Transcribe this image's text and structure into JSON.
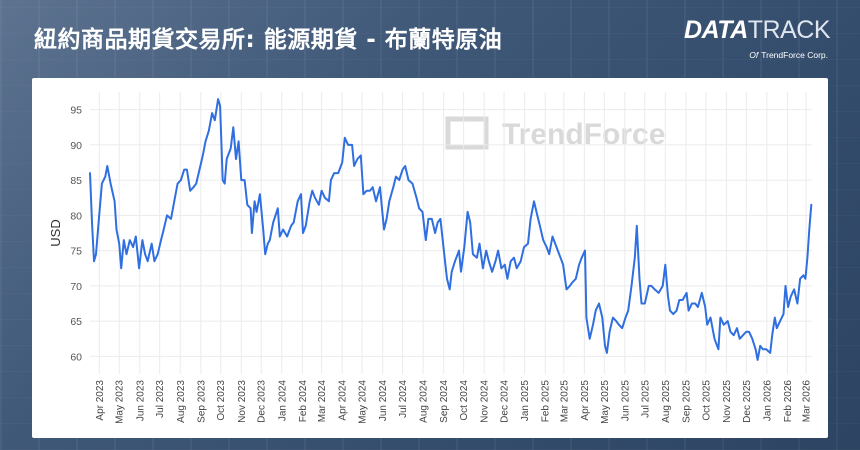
{
  "header": {
    "title": "紐約商品期貨交易所: 能源期貨 - 布蘭特原油"
  },
  "brand": {
    "name_bold": "DATA",
    "name_thin": "TRACK",
    "of_label": "Of",
    "company": "TrendForce Corp."
  },
  "watermark": "TrendForce",
  "colors": {
    "line": "#2f6fe0",
    "grid": "#ebebeb",
    "panel": "#ffffff"
  },
  "chart_data": {
    "type": "line",
    "ylabel": "USD",
    "ylim": [
      57.5,
      97.5
    ],
    "yticks": [
      60,
      65,
      70,
      75,
      80,
      85,
      90,
      95
    ],
    "grid": true,
    "xlim": [
      "2023-03-18",
      "2026-03-10"
    ],
    "x_ticks": [
      {
        "date": "2023-04-01",
        "label": "Apr 2023"
      },
      {
        "date": "2023-05-01",
        "label": "May 2023"
      },
      {
        "date": "2023-06-01",
        "label": "Jun 2023"
      },
      {
        "date": "2023-07-01",
        "label": "Jul 2023"
      },
      {
        "date": "2023-08-01",
        "label": "Aug 2023"
      },
      {
        "date": "2023-09-01",
        "label": "Sep 2023"
      },
      {
        "date": "2023-10-01",
        "label": "Oct 2023"
      },
      {
        "date": "2023-11-01",
        "label": "Nov 2023"
      },
      {
        "date": "2023-12-01",
        "label": "Dec 2023"
      },
      {
        "date": "2024-01-01",
        "label": "Jan 2024"
      },
      {
        "date": "2024-02-01",
        "label": "Feb 2024"
      },
      {
        "date": "2024-03-01",
        "label": "Mar 2024"
      },
      {
        "date": "2024-04-01",
        "label": "Apr 2024"
      },
      {
        "date": "2024-05-01",
        "label": "May 2024"
      },
      {
        "date": "2024-06-01",
        "label": "Jun 2024"
      },
      {
        "date": "2024-07-01",
        "label": "Jul 2024"
      },
      {
        "date": "2024-08-01",
        "label": "Aug 2024"
      },
      {
        "date": "2024-09-01",
        "label": "Sep 2024"
      },
      {
        "date": "2024-10-01",
        "label": "Oct 2024"
      },
      {
        "date": "2024-11-01",
        "label": "Nov 2024"
      },
      {
        "date": "2024-12-01",
        "label": "Dec 2024"
      },
      {
        "date": "2025-01-01",
        "label": "Jan 2025"
      },
      {
        "date": "2025-02-01",
        "label": "Feb 2025"
      },
      {
        "date": "2025-03-01",
        "label": "Mar 2025"
      },
      {
        "date": "2025-04-01",
        "label": "Apr 2025"
      },
      {
        "date": "2025-05-01",
        "label": "May 2025"
      },
      {
        "date": "2025-06-01",
        "label": "Jun 2025"
      },
      {
        "date": "2025-07-01",
        "label": "Jul 2025"
      },
      {
        "date": "2025-08-01",
        "label": "Aug 2025"
      },
      {
        "date": "2025-09-01",
        "label": "Sep 2025"
      },
      {
        "date": "2025-10-01",
        "label": "Oct 2025"
      },
      {
        "date": "2025-11-01",
        "label": "Nov 2025"
      },
      {
        "date": "2025-12-01",
        "label": "Dec 2025"
      },
      {
        "date": "2026-01-01",
        "label": "Jan 2026"
      },
      {
        "date": "2026-02-01",
        "label": "Feb 2026"
      },
      {
        "date": "2026-03-01",
        "label": "Mar 2026"
      }
    ],
    "series": [
      {
        "points": [
          [
            "2023-03-18",
            86.0
          ],
          [
            "2023-03-21",
            79.0
          ],
          [
            "2023-03-24",
            73.5
          ],
          [
            "2023-03-27",
            74.5
          ],
          [
            "2023-03-31",
            79.0
          ],
          [
            "2023-04-05",
            84.5
          ],
          [
            "2023-04-10",
            85.5
          ],
          [
            "2023-04-13",
            87.0
          ],
          [
            "2023-04-18",
            84.5
          ],
          [
            "2023-04-24",
            82.0
          ],
          [
            "2023-04-27",
            78.0
          ],
          [
            "2023-05-01",
            76.0
          ],
          [
            "2023-05-04",
            72.5
          ],
          [
            "2023-05-08",
            76.5
          ],
          [
            "2023-05-12",
            74.5
          ],
          [
            "2023-05-17",
            76.5
          ],
          [
            "2023-05-22",
            75.5
          ],
          [
            "2023-05-26",
            77.0
          ],
          [
            "2023-05-31",
            72.5
          ],
          [
            "2023-06-05",
            76.5
          ],
          [
            "2023-06-09",
            74.5
          ],
          [
            "2023-06-13",
            73.5
          ],
          [
            "2023-06-19",
            76.0
          ],
          [
            "2023-06-23",
            73.5
          ],
          [
            "2023-06-28",
            74.5
          ],
          [
            "2023-07-03",
            76.5
          ],
          [
            "2023-07-07",
            78.0
          ],
          [
            "2023-07-12",
            80.0
          ],
          [
            "2023-07-18",
            79.5
          ],
          [
            "2023-07-24",
            82.5
          ],
          [
            "2023-07-28",
            84.5
          ],
          [
            "2023-08-02",
            85.0
          ],
          [
            "2023-08-07",
            86.5
          ],
          [
            "2023-08-11",
            86.5
          ],
          [
            "2023-08-16",
            83.5
          ],
          [
            "2023-08-21",
            84.0
          ],
          [
            "2023-08-25",
            84.5
          ],
          [
            "2023-08-30",
            86.5
          ],
          [
            "2023-09-04",
            88.5
          ],
          [
            "2023-09-08",
            90.5
          ],
          [
            "2023-09-13",
            92.0
          ],
          [
            "2023-09-18",
            94.5
          ],
          [
            "2023-09-22",
            93.5
          ],
          [
            "2023-09-27",
            96.5
          ],
          [
            "2023-09-30",
            95.5
          ],
          [
            "2023-10-04",
            85.0
          ],
          [
            "2023-10-07",
            84.5
          ],
          [
            "2023-10-10",
            88.0
          ],
          [
            "2023-10-16",
            89.5
          ],
          [
            "2023-10-20",
            92.5
          ],
          [
            "2023-10-24",
            88.0
          ],
          [
            "2023-10-28",
            90.5
          ],
          [
            "2023-11-01",
            85.0
          ],
          [
            "2023-11-06",
            85.0
          ],
          [
            "2023-11-10",
            81.5
          ],
          [
            "2023-11-15",
            81.0
          ],
          [
            "2023-11-17",
            77.5
          ],
          [
            "2023-11-21",
            82.0
          ],
          [
            "2023-11-24",
            80.5
          ],
          [
            "2023-11-29",
            83.0
          ],
          [
            "2023-12-04",
            78.0
          ],
          [
            "2023-12-07",
            74.5
          ],
          [
            "2023-12-11",
            76.0
          ],
          [
            "2023-12-14",
            76.5
          ],
          [
            "2023-12-19",
            79.0
          ],
          [
            "2023-12-26",
            81.0
          ],
          [
            "2023-12-29",
            77.0
          ],
          [
            "2024-01-03",
            78.0
          ],
          [
            "2024-01-09",
            77.0
          ],
          [
            "2024-01-15",
            78.5
          ],
          [
            "2024-01-19",
            79.0
          ],
          [
            "2024-01-25",
            82.0
          ],
          [
            "2024-01-30",
            83.0
          ],
          [
            "2024-02-02",
            77.5
          ],
          [
            "2024-02-06",
            78.5
          ],
          [
            "2024-02-12",
            82.0
          ],
          [
            "2024-02-16",
            83.5
          ],
          [
            "2024-02-20",
            82.5
          ],
          [
            "2024-02-26",
            81.5
          ],
          [
            "2024-03-01",
            83.5
          ],
          [
            "2024-03-06",
            82.5
          ],
          [
            "2024-03-12",
            82.0
          ],
          [
            "2024-03-15",
            85.0
          ],
          [
            "2024-03-20",
            86.0
          ],
          [
            "2024-03-26",
            86.0
          ],
          [
            "2024-04-01",
            87.5
          ],
          [
            "2024-04-05",
            91.0
          ],
          [
            "2024-04-10",
            90.0
          ],
          [
            "2024-04-16",
            90.0
          ],
          [
            "2024-04-19",
            87.0
          ],
          [
            "2024-04-24",
            88.0
          ],
          [
            "2024-04-29",
            88.5
          ],
          [
            "2024-05-03",
            83.0
          ],
          [
            "2024-05-08",
            83.5
          ],
          [
            "2024-05-13",
            83.5
          ],
          [
            "2024-05-17",
            84.0
          ],
          [
            "2024-05-22",
            82.0
          ],
          [
            "2024-05-28",
            84.0
          ],
          [
            "2024-06-03",
            78.0
          ],
          [
            "2024-06-07",
            79.5
          ],
          [
            "2024-06-11",
            82.0
          ],
          [
            "2024-06-17",
            84.0
          ],
          [
            "2024-06-21",
            85.5
          ],
          [
            "2024-06-26",
            85.0
          ],
          [
            "2024-07-01",
            86.5
          ],
          [
            "2024-07-05",
            87.0
          ],
          [
            "2024-07-10",
            85.0
          ],
          [
            "2024-07-16",
            84.5
          ],
          [
            "2024-07-22",
            82.5
          ],
          [
            "2024-07-26",
            81.0
          ],
          [
            "2024-07-31",
            80.5
          ],
          [
            "2024-08-05",
            76.5
          ],
          [
            "2024-08-09",
            79.5
          ],
          [
            "2024-08-14",
            79.5
          ],
          [
            "2024-08-19",
            77.5
          ],
          [
            "2024-08-23",
            79.0
          ],
          [
            "2024-08-27",
            79.5
          ],
          [
            "2024-09-03",
            73.5
          ],
          [
            "2024-09-06",
            71.0
          ],
          [
            "2024-09-10",
            69.5
          ],
          [
            "2024-09-13",
            72.0
          ],
          [
            "2024-09-18",
            73.5
          ],
          [
            "2024-09-24",
            75.0
          ],
          [
            "2024-09-27",
            72.0
          ],
          [
            "2024-10-02",
            75.5
          ],
          [
            "2024-10-07",
            80.5
          ],
          [
            "2024-10-11",
            79.0
          ],
          [
            "2024-10-15",
            74.5
          ],
          [
            "2024-10-21",
            74.0
          ],
          [
            "2024-10-25",
            76.0
          ],
          [
            "2024-10-30",
            72.5
          ],
          [
            "2024-11-04",
            75.0
          ],
          [
            "2024-11-08",
            73.5
          ],
          [
            "2024-11-13",
            72.0
          ],
          [
            "2024-11-18",
            73.5
          ],
          [
            "2024-11-22",
            75.0
          ],
          [
            "2024-11-27",
            72.5
          ],
          [
            "2024-12-02",
            73.0
          ],
          [
            "2024-12-06",
            71.0
          ],
          [
            "2024-12-11",
            73.5
          ],
          [
            "2024-12-16",
            74.0
          ],
          [
            "2024-12-20",
            72.5
          ],
          [
            "2024-12-26",
            73.5
          ],
          [
            "2024-12-31",
            75.5
          ],
          [
            "2025-01-06",
            76.0
          ],
          [
            "2025-01-10",
            79.5
          ],
          [
            "2025-01-15",
            82.0
          ],
          [
            "2025-01-20",
            80.0
          ],
          [
            "2025-01-24",
            78.5
          ],
          [
            "2025-01-29",
            76.5
          ],
          [
            "2025-02-03",
            75.5
          ],
          [
            "2025-02-07",
            74.5
          ],
          [
            "2025-02-12",
            77.0
          ],
          [
            "2025-02-18",
            75.5
          ],
          [
            "2025-02-24",
            74.0
          ],
          [
            "2025-02-28",
            73.0
          ],
          [
            "2025-03-05",
            69.5
          ],
          [
            "2025-03-10",
            70.0
          ],
          [
            "2025-03-14",
            70.5
          ],
          [
            "2025-03-19",
            71.0
          ],
          [
            "2025-03-24",
            73.0
          ],
          [
            "2025-03-28",
            74.0
          ],
          [
            "2025-04-02",
            75.0
          ],
          [
            "2025-04-04",
            65.5
          ],
          [
            "2025-04-09",
            62.5
          ],
          [
            "2025-04-14",
            64.5
          ],
          [
            "2025-04-18",
            66.5
          ],
          [
            "2025-04-23",
            67.5
          ],
          [
            "2025-04-28",
            65.5
          ],
          [
            "2025-05-02",
            61.5
          ],
          [
            "2025-05-05",
            60.5
          ],
          [
            "2025-05-09",
            63.5
          ],
          [
            "2025-05-14",
            65.5
          ],
          [
            "2025-05-19",
            65.0
          ],
          [
            "2025-05-23",
            64.5
          ],
          [
            "2025-05-28",
            64.0
          ],
          [
            "2025-06-02",
            65.5
          ],
          [
            "2025-06-06",
            66.5
          ],
          [
            "2025-06-11",
            70.0
          ],
          [
            "2025-06-16",
            74.0
          ],
          [
            "2025-06-19",
            78.5
          ],
          [
            "2025-06-23",
            71.0
          ],
          [
            "2025-06-26",
            67.5
          ],
          [
            "2025-07-01",
            67.5
          ],
          [
            "2025-07-07",
            70.0
          ],
          [
            "2025-07-11",
            70.0
          ],
          [
            "2025-07-16",
            69.5
          ],
          [
            "2025-07-22",
            69.0
          ],
          [
            "2025-07-28",
            70.0
          ],
          [
            "2025-08-01",
            73.0
          ],
          [
            "2025-08-05",
            68.5
          ],
          [
            "2025-08-08",
            66.5
          ],
          [
            "2025-08-13",
            66.0
          ],
          [
            "2025-08-18",
            66.5
          ],
          [
            "2025-08-22",
            68.0
          ],
          [
            "2025-08-27",
            68.0
          ],
          [
            "2025-09-02",
            69.0
          ],
          [
            "2025-09-05",
            66.5
          ],
          [
            "2025-09-10",
            67.5
          ],
          [
            "2025-09-15",
            67.5
          ],
          [
            "2025-09-19",
            67.0
          ],
          [
            "2025-09-25",
            69.0
          ],
          [
            "2025-09-30",
            67.0
          ],
          [
            "2025-10-03",
            64.5
          ],
          [
            "2025-10-08",
            65.5
          ],
          [
            "2025-10-14",
            62.5
          ],
          [
            "2025-10-20",
            61.0
          ],
          [
            "2025-10-23",
            65.5
          ],
          [
            "2025-10-28",
            64.5
          ],
          [
            "2025-11-03",
            65.0
          ],
          [
            "2025-11-07",
            63.5
          ],
          [
            "2025-11-12",
            63.0
          ],
          [
            "2025-11-17",
            64.0
          ],
          [
            "2025-11-21",
            62.5
          ],
          [
            "2025-11-26",
            63.0
          ],
          [
            "2025-12-01",
            63.5
          ],
          [
            "2025-12-05",
            63.5
          ],
          [
            "2025-12-10",
            62.5
          ],
          [
            "2025-12-15",
            61.0
          ],
          [
            "2025-12-18",
            59.5
          ],
          [
            "2025-12-22",
            61.5
          ],
          [
            "2025-12-26",
            61.0
          ],
          [
            "2025-12-31",
            61.0
          ],
          [
            "2026-01-06",
            60.5
          ],
          [
            "2026-01-09",
            63.0
          ],
          [
            "2026-01-13",
            65.5
          ],
          [
            "2026-01-16",
            64.0
          ],
          [
            "2026-01-21",
            65.0
          ],
          [
            "2026-01-26",
            66.0
          ],
          [
            "2026-01-29",
            70.0
          ],
          [
            "2026-02-02",
            67.0
          ],
          [
            "2026-02-06",
            68.5
          ],
          [
            "2026-02-11",
            69.5
          ],
          [
            "2026-02-16",
            67.5
          ],
          [
            "2026-02-20",
            71.0
          ],
          [
            "2026-02-25",
            71.5
          ],
          [
            "2026-02-28",
            71.0
          ],
          [
            "2026-03-03",
            74.0
          ],
          [
            "2026-03-06",
            78.0
          ],
          [
            "2026-03-09",
            81.5
          ]
        ]
      }
    ]
  }
}
